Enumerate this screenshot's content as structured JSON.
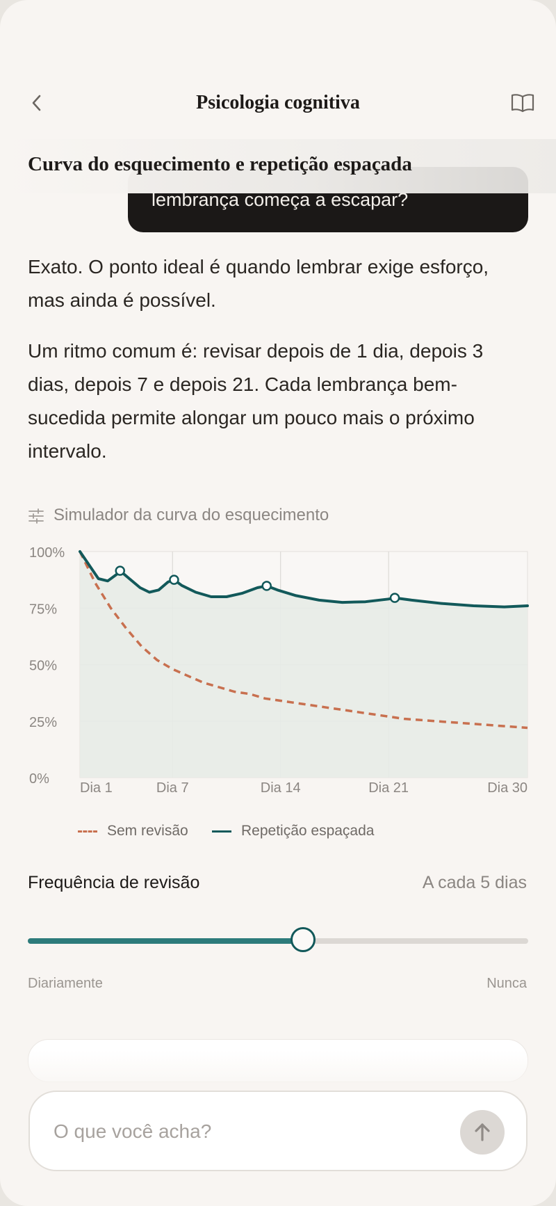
{
  "header": {
    "title": "Psicologia cognitiva",
    "back_icon": "chevron-left-icon",
    "book_icon": "book-open-icon"
  },
  "section": {
    "title": "Curva do esquecimento e repetição espaçada"
  },
  "user_bubble": {
    "text": "lembrança começa a escapar?"
  },
  "assistant": {
    "paragraph_1": "Exato. O ponto ideal é quando lembrar exige esforço, mas ainda é possível.",
    "paragraph_2": "Um ritmo comum é: revisar depois de 1 dia, depois 3 dias, depois 7 e depois 21. Cada lembrança bem-sucedida permite alongar um pouco mais o próximo intervalo."
  },
  "simulator": {
    "label": "Simulador da curva do esquecimento",
    "icon": "sliders-icon"
  },
  "chart_data": {
    "type": "line",
    "title": "",
    "xlabel": "",
    "ylabel": "",
    "x_range": [
      1,
      30
    ],
    "ylim": [
      0,
      100
    ],
    "x_ticks": [
      {
        "value": 1,
        "label": "Dia 1"
      },
      {
        "value": 7,
        "label": "Dia 7"
      },
      {
        "value": 14,
        "label": "Dia 14"
      },
      {
        "value": 21,
        "label": "Dia 21"
      },
      {
        "value": 30,
        "label": "Dia 30"
      }
    ],
    "y_ticks": [
      {
        "value": 100,
        "label": "100%"
      },
      {
        "value": 75,
        "label": "75%"
      },
      {
        "value": 50,
        "label": "50%"
      },
      {
        "value": 25,
        "label": "25%"
      },
      {
        "value": 0,
        "label": "0%"
      }
    ],
    "grid": true,
    "legend_position": "bottom",
    "series": [
      {
        "name": "Sem revisão",
        "style": "dashed",
        "color": "#c8704f",
        "points": [
          [
            1,
            100
          ],
          [
            2,
            86
          ],
          [
            3,
            75
          ],
          [
            4,
            66
          ],
          [
            5,
            58
          ],
          [
            6,
            52
          ],
          [
            7,
            48
          ],
          [
            8,
            45
          ],
          [
            9,
            42
          ],
          [
            10,
            40
          ],
          [
            11,
            38
          ],
          [
            12,
            37
          ],
          [
            13,
            35
          ],
          [
            14,
            34
          ],
          [
            15,
            33
          ],
          [
            16,
            32
          ],
          [
            17,
            31
          ],
          [
            18,
            30
          ],
          [
            19,
            29
          ],
          [
            20,
            28
          ],
          [
            21,
            27
          ],
          [
            22,
            26
          ],
          [
            23,
            25.5
          ],
          [
            24,
            25
          ],
          [
            25,
            24.5
          ],
          [
            26,
            24
          ],
          [
            27,
            23.5
          ],
          [
            28,
            23
          ],
          [
            29,
            22.5
          ],
          [
            30,
            22
          ]
        ]
      },
      {
        "name": "Repetição espaçada",
        "style": "solid",
        "color": "#12595a",
        "fill": "#e7ebe7",
        "points": [
          [
            1,
            100
          ],
          [
            1.6,
            94
          ],
          [
            2.2,
            88
          ],
          [
            2.8,
            87
          ],
          [
            3.4,
            90
          ],
          [
            3.6,
            91.5
          ],
          [
            4.2,
            88
          ],
          [
            4.9,
            84
          ],
          [
            5.5,
            82
          ],
          [
            6.1,
            83
          ],
          [
            6.7,
            86.5
          ],
          [
            7.1,
            87.5
          ],
          [
            7.6,
            85
          ],
          [
            8.5,
            82
          ],
          [
            9.5,
            80
          ],
          [
            10.5,
            80
          ],
          [
            11.5,
            81.5
          ],
          [
            12.5,
            84
          ],
          [
            13.1,
            84.8
          ],
          [
            13.8,
            83
          ],
          [
            15,
            80.5
          ],
          [
            16.5,
            78.5
          ],
          [
            18,
            77.5
          ],
          [
            19.5,
            77.8
          ],
          [
            21,
            79
          ],
          [
            21.4,
            79.5
          ],
          [
            22.5,
            78.5
          ],
          [
            24.5,
            77
          ],
          [
            26.5,
            76
          ],
          [
            28.5,
            75.5
          ],
          [
            30,
            76
          ]
        ],
        "review_markers": [
          [
            3.6,
            91.5
          ],
          [
            7.1,
            87.5
          ],
          [
            13.1,
            84.8
          ],
          [
            21.4,
            79.5
          ]
        ]
      }
    ]
  },
  "legend": {
    "no_review": "Sem revisão",
    "spaced": "Repetição espaçada"
  },
  "frequency": {
    "label": "Frequência de revisão",
    "value": "A cada 5 dias",
    "min_label": "Diariamente",
    "max_label": "Nunca",
    "slider_fraction": 0.55
  },
  "composer": {
    "placeholder": "O que você acha?",
    "send_icon": "arrow-up-icon"
  },
  "colors": {
    "accent": "#12595a",
    "no_review": "#c8704f",
    "background": "#f8f5f2",
    "bubble": "#1b1817"
  }
}
